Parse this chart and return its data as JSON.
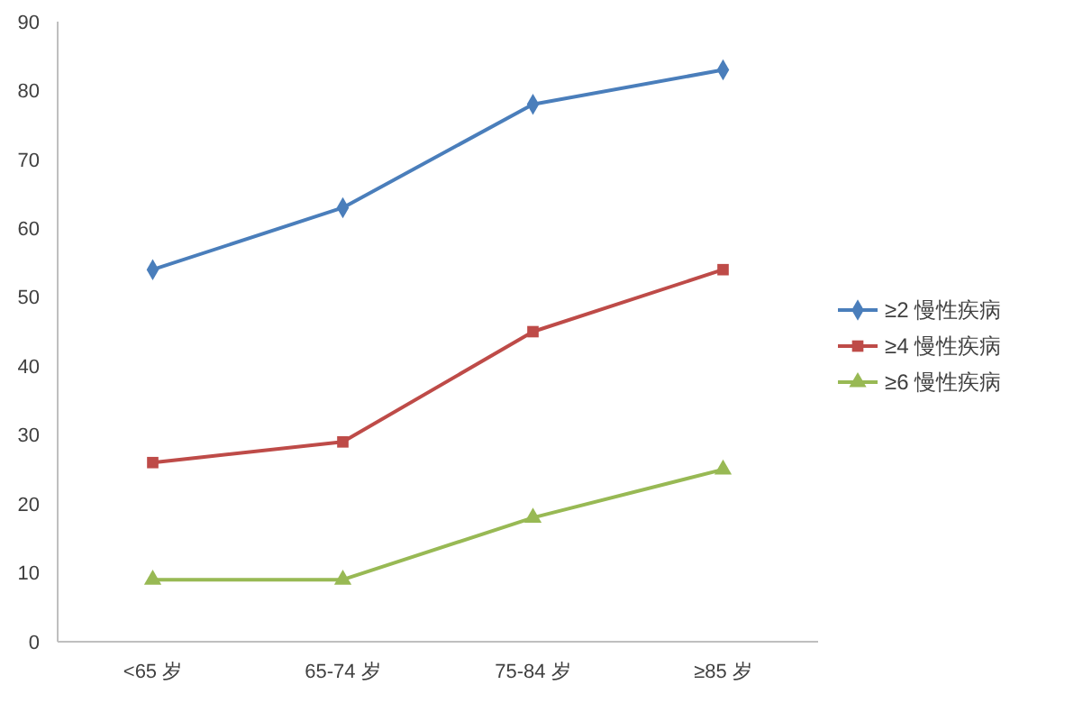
{
  "chart_data": {
    "type": "line",
    "categories": [
      "<65 岁",
      "65-74 岁",
      "75-84 岁",
      "≥85 岁"
    ],
    "series": [
      {
        "name": "≥2  慢性疾病",
        "color": "#4a7ebb",
        "marker": "diamond",
        "values": [
          54,
          63,
          78,
          83
        ]
      },
      {
        "name": "≥4  慢性疾病",
        "color": "#be4b48",
        "marker": "square",
        "values": [
          26,
          29,
          45,
          54
        ]
      },
      {
        "name": "≥6  慢性疾病",
        "color": "#98b954",
        "marker": "triangle",
        "values": [
          9,
          9,
          18,
          25
        ]
      }
    ],
    "ylim": [
      0,
      90
    ],
    "yticks": [
      0,
      10,
      20,
      30,
      40,
      50,
      60,
      70,
      80,
      90
    ],
    "grid": false,
    "legend": "right"
  }
}
